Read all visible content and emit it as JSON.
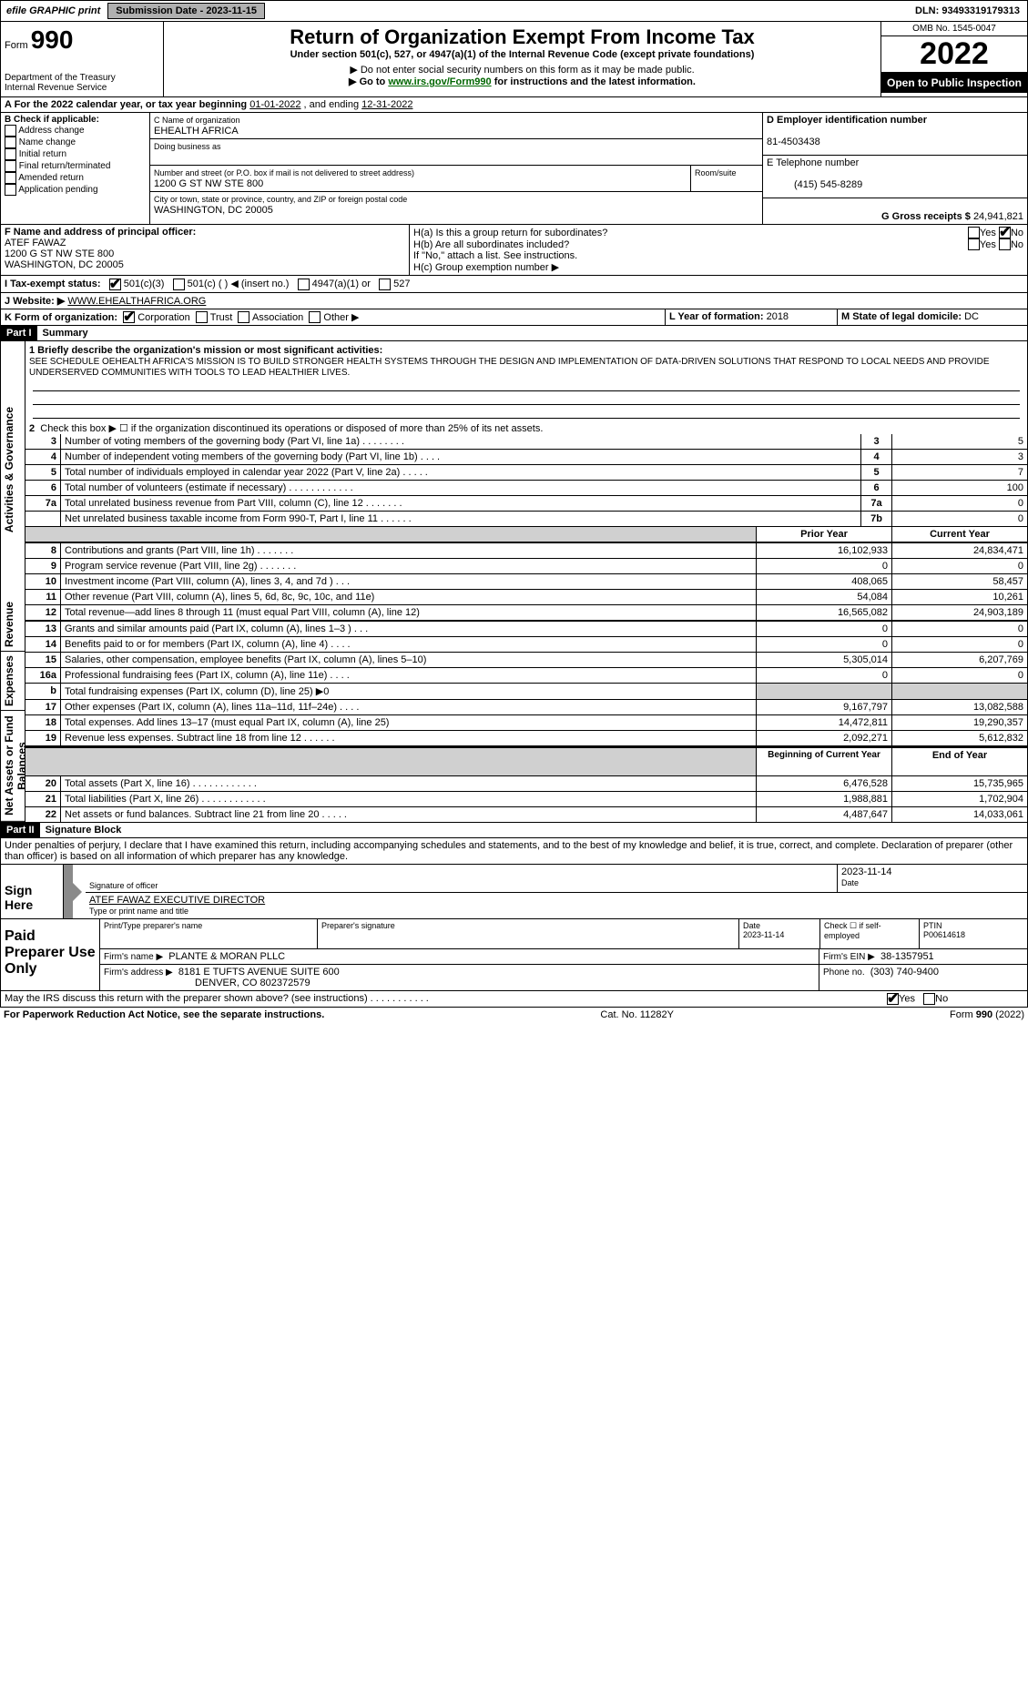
{
  "topbar": {
    "efile": "efile GRAPHIC print",
    "submission_btn": "Submission Date - 2023-11-15",
    "dln": "DLN: 93493319179313"
  },
  "header": {
    "form_prefix": "Form",
    "form_number": "990",
    "dept": "Department of the Treasury",
    "irs": "Internal Revenue Service",
    "title": "Return of Organization Exempt From Income Tax",
    "subtitle": "Under section 501(c), 527, or 4947(a)(1) of the Internal Revenue Code (except private foundations)",
    "note1": "▶ Do not enter social security numbers on this form as it may be made public.",
    "note2_pre": "▶ Go to ",
    "note2_link": "www.irs.gov/Form990",
    "note2_post": " for instructions and the latest information.",
    "omb": "OMB No. 1545-0047",
    "year": "2022",
    "open": "Open to Public Inspection"
  },
  "line_a": {
    "prefix": "A For the 2022 calendar year, or tax year beginning ",
    "begin": "01-01-2022",
    "mid": "   , and ending ",
    "end": "12-31-2022"
  },
  "box_b": {
    "title": "B Check if applicable:",
    "items": [
      "Address change",
      "Name change",
      "Initial return",
      "Final return/terminated",
      "Amended return",
      "Application pending"
    ]
  },
  "box_c": {
    "label": "C Name of organization",
    "name": "EHEALTH AFRICA",
    "dba_label": "Doing business as",
    "street_label": "Number and street (or P.O. box if mail is not delivered to street address)",
    "room_label": "Room/suite",
    "street": "1200 G ST NW STE 800",
    "city_label": "City or town, state or province, country, and ZIP or foreign postal code",
    "city": "WASHINGTON, DC  20005"
  },
  "box_d": {
    "label": "D Employer identification number",
    "value": "81-4503438"
  },
  "box_e": {
    "label": "E Telephone number",
    "value": "(415) 545-8289"
  },
  "box_g": {
    "label": "G Gross receipts $",
    "value": "24,941,821"
  },
  "box_f": {
    "label": "F  Name and address of principal officer:",
    "name": "ATEF FAWAZ",
    "street": "1200 G ST NW STE 800",
    "city": "WASHINGTON, DC  20005"
  },
  "box_h": {
    "a": "H(a)  Is this a group return for subordinates?",
    "b": "H(b)  Are all subordinates included?",
    "note": "If \"No,\" attach a list. See instructions.",
    "c": "H(c)  Group exemption number ▶",
    "yes": "Yes",
    "no": "No"
  },
  "box_i": {
    "label": "I  Tax-exempt status:",
    "opts": [
      "501(c)(3)",
      "501(c) (   ) ◀ (insert no.)",
      "4947(a)(1) or",
      "527"
    ]
  },
  "box_j": {
    "label": "J  Website: ▶",
    "value": "  WWW.EHEALTHAFRICA.ORG"
  },
  "box_k": {
    "label": "K Form of organization:",
    "opts": [
      "Corporation",
      "Trust",
      "Association",
      "Other ▶"
    ]
  },
  "box_l": {
    "label": "L Year of formation:",
    "value": "2018"
  },
  "box_m": {
    "label": "M State of legal domicile:",
    "value": "DC"
  },
  "part1": {
    "label": "Part I",
    "title": "Summary"
  },
  "summary": {
    "s1_label": "1  Briefly describe the organization's mission or most significant activities:",
    "s1_text": "SEE SCHEDULE OEHEALTH AFRICA'S MISSION IS TO BUILD STRONGER HEALTH SYSTEMS THROUGH THE DESIGN AND IMPLEMENTATION OF DATA-DRIVEN SOLUTIONS THAT RESPOND TO LOCAL NEEDS AND PROVIDE UNDERSERVED COMMUNITIES WITH TOOLS TO LEAD HEALTHIER LIVES.",
    "s2": "Check this box ▶ ☐  if the organization discontinued its operations or disposed of more than 25% of its net assets.",
    "rows_gov": [
      {
        "n": "3",
        "label": "Number of voting members of the governing body (Part VI, line 1a)   .    .    .    .    .    .    .    .",
        "box": "3",
        "val": "5"
      },
      {
        "n": "4",
        "label": "Number of independent voting members of the governing body (Part VI, line 1b)   .    .    .    .",
        "box": "4",
        "val": "3"
      },
      {
        "n": "5",
        "label": "Total number of individuals employed in calendar year 2022 (Part V, line 2a)   .    .    .    .    .",
        "box": "5",
        "val": "7"
      },
      {
        "n": "6",
        "label": "Total number of volunteers (estimate if necessary)   .    .    .    .    .    .    .    .    .    .    .    .",
        "box": "6",
        "val": "100"
      },
      {
        "n": "7a",
        "label": "Total unrelated business revenue from Part VIII, column (C), line 12   .    .    .    .    .    .    .",
        "box": "7a",
        "val": "0"
      },
      {
        "n": "",
        "label": "Net unrelated business taxable income from Form 990-T, Part I, line 11   .    .    .    .    .    .",
        "box": "7b",
        "val": "0"
      }
    ],
    "col_prior": "Prior Year",
    "col_current": "Current Year",
    "rows_rev": [
      {
        "n": "8",
        "label": "Contributions and grants (Part VIII, line 1h)   .    .    .    .    .    .    .",
        "p": "16,102,933",
        "c": "24,834,471"
      },
      {
        "n": "9",
        "label": "Program service revenue (Part VIII, line 2g)   .    .    .    .    .    .    .",
        "p": "0",
        "c": "0"
      },
      {
        "n": "10",
        "label": "Investment income (Part VIII, column (A), lines 3, 4, and 7d )   .    .    .",
        "p": "408,065",
        "c": "58,457"
      },
      {
        "n": "11",
        "label": "Other revenue (Part VIII, column (A), lines 5, 6d, 8c, 9c, 10c, and 11e)",
        "p": "54,084",
        "c": "10,261"
      },
      {
        "n": "12",
        "label": "Total revenue—add lines 8 through 11 (must equal Part VIII, column (A), line 12)",
        "p": "16,565,082",
        "c": "24,903,189"
      }
    ],
    "rows_exp": [
      {
        "n": "13",
        "label": "Grants and similar amounts paid (Part IX, column (A), lines 1–3 )   .    .    .",
        "p": "0",
        "c": "0"
      },
      {
        "n": "14",
        "label": "Benefits paid to or for members (Part IX, column (A), line 4)   .    .    .    .",
        "p": "0",
        "c": "0"
      },
      {
        "n": "15",
        "label": "Salaries, other compensation, employee benefits (Part IX, column (A), lines 5–10)",
        "p": "5,305,014",
        "c": "6,207,769"
      },
      {
        "n": "16a",
        "label": "Professional fundraising fees (Part IX, column (A), line 11e)   .    .    .    .",
        "p": "0",
        "c": "0"
      },
      {
        "n": "b",
        "label": "Total fundraising expenses (Part IX, column (D), line 25) ▶0",
        "p": "",
        "c": "",
        "shaded": true
      },
      {
        "n": "17",
        "label": "Other expenses (Part IX, column (A), lines 11a–11d, 11f–24e)   .    .    .    .",
        "p": "9,167,797",
        "c": "13,082,588"
      },
      {
        "n": "18",
        "label": "Total expenses. Add lines 13–17 (must equal Part IX, column (A), line 25)",
        "p": "14,472,811",
        "c": "19,290,357"
      },
      {
        "n": "19",
        "label": "Revenue less expenses. Subtract line 18 from line 12   .    .    .    .    .    .",
        "p": "2,092,271",
        "c": "5,612,832"
      }
    ],
    "col_begin": "Beginning of Current Year",
    "col_end": "End of Year",
    "rows_net": [
      {
        "n": "20",
        "label": "Total assets (Part X, line 16)   .    .    .    .    .    .    .    .    .    .    .    .",
        "p": "6,476,528",
        "c": "15,735,965"
      },
      {
        "n": "21",
        "label": "Total liabilities (Part X, line 26)   .    .    .    .    .    .    .    .    .    .    .    .",
        "p": "1,988,881",
        "c": "1,702,904"
      },
      {
        "n": "22",
        "label": "Net assets or fund balances. Subtract line 21 from line 20   .    .    .    .    .",
        "p": "4,487,647",
        "c": "14,033,061"
      }
    ],
    "side_labels": {
      "gov": "Activities & Governance",
      "rev": "Revenue",
      "exp": "Expenses",
      "net": "Net Assets or Fund Balances"
    }
  },
  "part2": {
    "label": "Part II",
    "title": "Signature Block",
    "penalty": "Under penalties of perjury, I declare that I have examined this return, including accompanying schedules and statements, and to the best of my knowledge and belief, it is true, correct, and complete. Declaration of preparer (other than officer) is based on all information of which preparer has any knowledge."
  },
  "sign": {
    "label": "Sign Here",
    "sig_officer": "Signature of officer",
    "date": "Date",
    "date_val": "2023-11-14",
    "name": "ATEF FAWAZ  EXECUTIVE DIRECTOR",
    "name_label": "Type or print name and title"
  },
  "preparer": {
    "label": "Paid Preparer Use Only",
    "h1": "Print/Type preparer's name",
    "h2": "Preparer's signature",
    "h3": "Date",
    "h3v": "2023-11-14",
    "h4": "Check ☐ if self-employed",
    "h5": "PTIN",
    "h5v": "P00614618",
    "firm_label": "Firm's name     ▶",
    "firm": "PLANTE & MORAN PLLC",
    "ein_label": "Firm's EIN ▶",
    "ein": "38-1357951",
    "addr_label": "Firm's address ▶",
    "addr1": "8181 E TUFTS AVENUE SUITE 600",
    "addr2": "DENVER, CO  802372579",
    "phone_label": "Phone no.",
    "phone": "(303) 740-9400"
  },
  "may_irs": {
    "text": "May the IRS discuss this return with the preparer shown above? (see instructions)   .    .    .    .    .    .    .    .    .    .    .",
    "yes": "Yes",
    "no": "No"
  },
  "footer": {
    "left": "For Paperwork Reduction Act Notice, see the separate instructions.",
    "mid": "Cat. No. 11282Y",
    "right_pre": "Form ",
    "right_bold": "990",
    "right_post": " (2022)"
  }
}
